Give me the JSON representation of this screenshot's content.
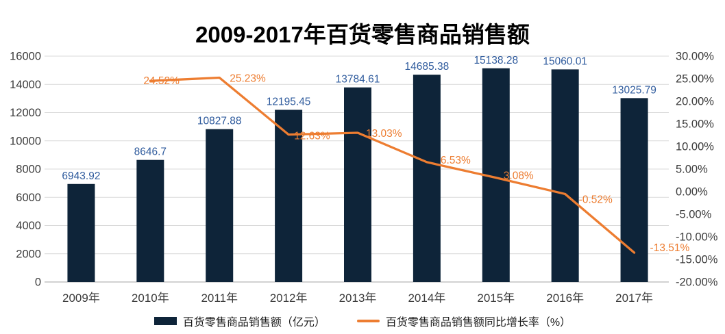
{
  "title": "2009-2017年百货零售商品销售额",
  "legend": {
    "bar_label": "百货零售商品销售额（亿元）",
    "line_label": "百货零售商品销售额同比增长率（%）"
  },
  "chart_data": {
    "type": "combo-bar-line",
    "title": "2009-2017年百货零售商品销售额",
    "categories": [
      "2009年",
      "2010年",
      "2011年",
      "2012年",
      "2013年",
      "2014年",
      "2015年",
      "2016年",
      "2017年"
    ],
    "series": [
      {
        "name": "百货零售商品销售额（亿元）",
        "type": "bar",
        "axis": "left",
        "color": "#0e2439",
        "label_color": "#2f5b9d",
        "values": [
          6943.92,
          8646.7,
          10827.88,
          12195.45,
          13784.61,
          14685.38,
          15138.28,
          15060.01,
          13025.79
        ],
        "labels": [
          "6943.92",
          "8646.7",
          "10827.88",
          "12195.45",
          "13784.61",
          "14685.38",
          "15138.28",
          "15060.01",
          "13025.79"
        ]
      },
      {
        "name": "百货零售商品销售额同比增长率（%）",
        "type": "line",
        "axis": "right",
        "color": "#ed7d31",
        "label_color": "#ed7d31",
        "start_index": 1,
        "values": [
          24.52,
          25.23,
          12.63,
          13.03,
          6.53,
          3.08,
          -0.52,
          -13.51
        ],
        "labels": [
          "24.52%",
          "25.23%",
          "12.63%",
          "13.03%",
          "6.53%",
          "3.08%",
          "-0.52%",
          "-13.51%"
        ]
      }
    ],
    "left_axis": {
      "min": 0,
      "max": 16000,
      "step": 2000,
      "ticks": [
        "0",
        "2000",
        "4000",
        "6000",
        "8000",
        "10000",
        "12000",
        "14000",
        "16000"
      ]
    },
    "right_axis": {
      "min": -20,
      "max": 30,
      "step": 5,
      "ticks": [
        "-20.00%",
        "-15.00%",
        "-10.00%",
        "-5.00%",
        "0.00%",
        "5.00%",
        "10.00%",
        "15.00%",
        "20.00%",
        "25.00%",
        "30.00%"
      ]
    },
    "grid": true,
    "legend_position": "bottom"
  },
  "colors": {
    "background": "#ffffff",
    "title": "#000000",
    "bar": "#0e2439",
    "bar_label": "#2f5b9d",
    "line": "#ed7d31",
    "line_label": "#ed7d31",
    "axis_text": "#3b3b3b",
    "gridline": "#d9d9d9",
    "baseline": "#c3c3c3",
    "legend_text": "#1a1a1a"
  }
}
